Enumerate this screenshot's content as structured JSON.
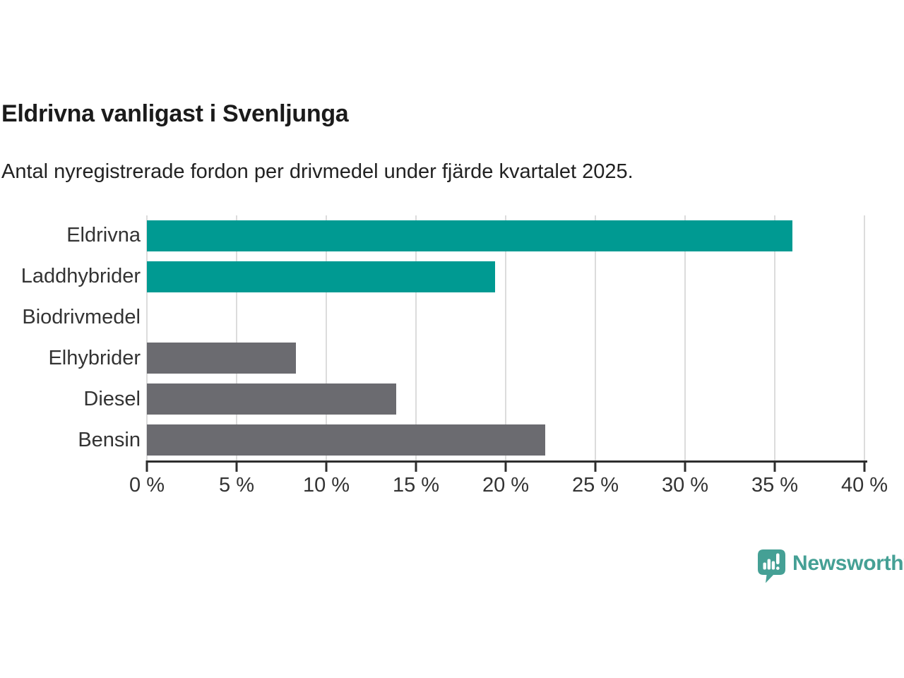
{
  "chart_data": {
    "type": "bar",
    "orientation": "horizontal",
    "title": "Eldrivna vanligast i Svenljunga",
    "subtitle": "Antal nyregistrerade fordon per drivmedel under fjärde kvartalet 2025.",
    "categories": [
      "Eldrivna",
      "Laddhybrider",
      "Biodrivmedel",
      "Elhybrider",
      "Diesel",
      "Bensin"
    ],
    "values": [
      36.0,
      19.4,
      0,
      8.3,
      13.9,
      22.2
    ],
    "unit": "%",
    "xlim": [
      0,
      40
    ],
    "xticks": [
      0,
      5,
      10,
      15,
      20,
      25,
      30,
      35,
      40
    ],
    "xtick_labels": [
      "0 %",
      "5 %",
      "10 %",
      "15 %",
      "20 %",
      "25 %",
      "30 %",
      "35 %",
      "40 %"
    ],
    "grid": "vertical",
    "legend": "none",
    "bar_colors": [
      "#009a92",
      "#009a92",
      "#6b6b70",
      "#6b6b70",
      "#6b6b70",
      "#6b6b70"
    ],
    "colors": {
      "teal": "#009a92",
      "gray": "#6b6b70",
      "axis": "#2d2d2d",
      "gridline": "#dcdcdc",
      "label_text": "#333333",
      "title_text": "#1b1b1b"
    }
  },
  "footer": {
    "brand": "Newsworthy",
    "brand_color": "#45a095",
    "logo_icon": "bar-chart-speech-bubble"
  }
}
